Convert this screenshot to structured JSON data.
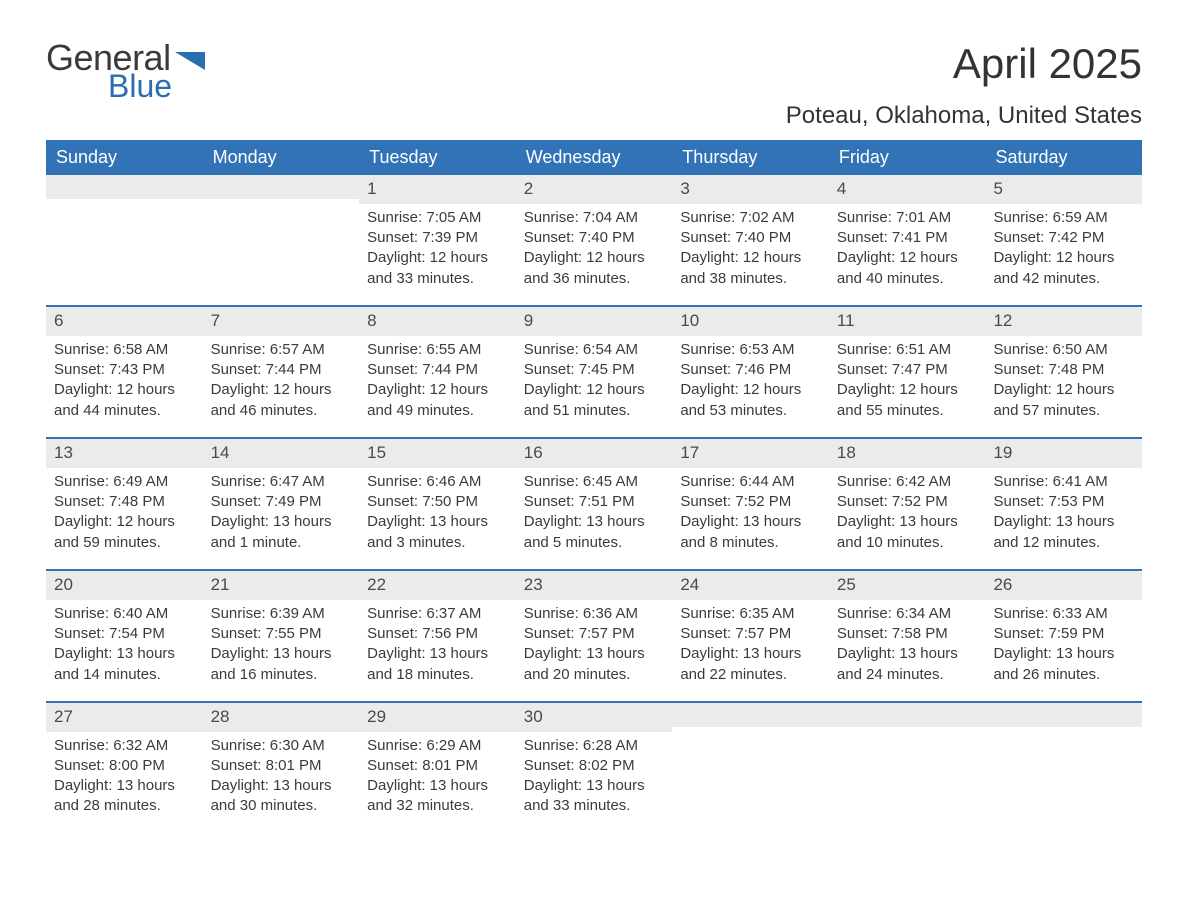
{
  "logo": {
    "word1": "General",
    "word2": "Blue",
    "shape_color": "#2a6db0"
  },
  "title": "April 2025",
  "location": "Poteau, Oklahoma, United States",
  "colors": {
    "header_bg": "#3173b6",
    "header_text": "#ffffff",
    "daynum_bg": "#ebebeb",
    "week_border": "#3173b6",
    "text": "#333333"
  },
  "dow": [
    "Sunday",
    "Monday",
    "Tuesday",
    "Wednesday",
    "Thursday",
    "Friday",
    "Saturday"
  ],
  "weeks": [
    [
      {
        "n": "",
        "sunrise": "",
        "sunset": "",
        "daylight": ""
      },
      {
        "n": "",
        "sunrise": "",
        "sunset": "",
        "daylight": ""
      },
      {
        "n": "1",
        "sunrise": "Sunrise: 7:05 AM",
        "sunset": "Sunset: 7:39 PM",
        "daylight": "Daylight: 12 hours and 33 minutes."
      },
      {
        "n": "2",
        "sunrise": "Sunrise: 7:04 AM",
        "sunset": "Sunset: 7:40 PM",
        "daylight": "Daylight: 12 hours and 36 minutes."
      },
      {
        "n": "3",
        "sunrise": "Sunrise: 7:02 AM",
        "sunset": "Sunset: 7:40 PM",
        "daylight": "Daylight: 12 hours and 38 minutes."
      },
      {
        "n": "4",
        "sunrise": "Sunrise: 7:01 AM",
        "sunset": "Sunset: 7:41 PM",
        "daylight": "Daylight: 12 hours and 40 minutes."
      },
      {
        "n": "5",
        "sunrise": "Sunrise: 6:59 AM",
        "sunset": "Sunset: 7:42 PM",
        "daylight": "Daylight: 12 hours and 42 minutes."
      }
    ],
    [
      {
        "n": "6",
        "sunrise": "Sunrise: 6:58 AM",
        "sunset": "Sunset: 7:43 PM",
        "daylight": "Daylight: 12 hours and 44 minutes."
      },
      {
        "n": "7",
        "sunrise": "Sunrise: 6:57 AM",
        "sunset": "Sunset: 7:44 PM",
        "daylight": "Daylight: 12 hours and 46 minutes."
      },
      {
        "n": "8",
        "sunrise": "Sunrise: 6:55 AM",
        "sunset": "Sunset: 7:44 PM",
        "daylight": "Daylight: 12 hours and 49 minutes."
      },
      {
        "n": "9",
        "sunrise": "Sunrise: 6:54 AM",
        "sunset": "Sunset: 7:45 PM",
        "daylight": "Daylight: 12 hours and 51 minutes."
      },
      {
        "n": "10",
        "sunrise": "Sunrise: 6:53 AM",
        "sunset": "Sunset: 7:46 PM",
        "daylight": "Daylight: 12 hours and 53 minutes."
      },
      {
        "n": "11",
        "sunrise": "Sunrise: 6:51 AM",
        "sunset": "Sunset: 7:47 PM",
        "daylight": "Daylight: 12 hours and 55 minutes."
      },
      {
        "n": "12",
        "sunrise": "Sunrise: 6:50 AM",
        "sunset": "Sunset: 7:48 PM",
        "daylight": "Daylight: 12 hours and 57 minutes."
      }
    ],
    [
      {
        "n": "13",
        "sunrise": "Sunrise: 6:49 AM",
        "sunset": "Sunset: 7:48 PM",
        "daylight": "Daylight: 12 hours and 59 minutes."
      },
      {
        "n": "14",
        "sunrise": "Sunrise: 6:47 AM",
        "sunset": "Sunset: 7:49 PM",
        "daylight": "Daylight: 13 hours and 1 minute."
      },
      {
        "n": "15",
        "sunrise": "Sunrise: 6:46 AM",
        "sunset": "Sunset: 7:50 PM",
        "daylight": "Daylight: 13 hours and 3 minutes."
      },
      {
        "n": "16",
        "sunrise": "Sunrise: 6:45 AM",
        "sunset": "Sunset: 7:51 PM",
        "daylight": "Daylight: 13 hours and 5 minutes."
      },
      {
        "n": "17",
        "sunrise": "Sunrise: 6:44 AM",
        "sunset": "Sunset: 7:52 PM",
        "daylight": "Daylight: 13 hours and 8 minutes."
      },
      {
        "n": "18",
        "sunrise": "Sunrise: 6:42 AM",
        "sunset": "Sunset: 7:52 PM",
        "daylight": "Daylight: 13 hours and 10 minutes."
      },
      {
        "n": "19",
        "sunrise": "Sunrise: 6:41 AM",
        "sunset": "Sunset: 7:53 PM",
        "daylight": "Daylight: 13 hours and 12 minutes."
      }
    ],
    [
      {
        "n": "20",
        "sunrise": "Sunrise: 6:40 AM",
        "sunset": "Sunset: 7:54 PM",
        "daylight": "Daylight: 13 hours and 14 minutes."
      },
      {
        "n": "21",
        "sunrise": "Sunrise: 6:39 AM",
        "sunset": "Sunset: 7:55 PM",
        "daylight": "Daylight: 13 hours and 16 minutes."
      },
      {
        "n": "22",
        "sunrise": "Sunrise: 6:37 AM",
        "sunset": "Sunset: 7:56 PM",
        "daylight": "Daylight: 13 hours and 18 minutes."
      },
      {
        "n": "23",
        "sunrise": "Sunrise: 6:36 AM",
        "sunset": "Sunset: 7:57 PM",
        "daylight": "Daylight: 13 hours and 20 minutes."
      },
      {
        "n": "24",
        "sunrise": "Sunrise: 6:35 AM",
        "sunset": "Sunset: 7:57 PM",
        "daylight": "Daylight: 13 hours and 22 minutes."
      },
      {
        "n": "25",
        "sunrise": "Sunrise: 6:34 AM",
        "sunset": "Sunset: 7:58 PM",
        "daylight": "Daylight: 13 hours and 24 minutes."
      },
      {
        "n": "26",
        "sunrise": "Sunrise: 6:33 AM",
        "sunset": "Sunset: 7:59 PM",
        "daylight": "Daylight: 13 hours and 26 minutes."
      }
    ],
    [
      {
        "n": "27",
        "sunrise": "Sunrise: 6:32 AM",
        "sunset": "Sunset: 8:00 PM",
        "daylight": "Daylight: 13 hours and 28 minutes."
      },
      {
        "n": "28",
        "sunrise": "Sunrise: 6:30 AM",
        "sunset": "Sunset: 8:01 PM",
        "daylight": "Daylight: 13 hours and 30 minutes."
      },
      {
        "n": "29",
        "sunrise": "Sunrise: 6:29 AM",
        "sunset": "Sunset: 8:01 PM",
        "daylight": "Daylight: 13 hours and 32 minutes."
      },
      {
        "n": "30",
        "sunrise": "Sunrise: 6:28 AM",
        "sunset": "Sunset: 8:02 PM",
        "daylight": "Daylight: 13 hours and 33 minutes."
      },
      {
        "n": "",
        "sunrise": "",
        "sunset": "",
        "daylight": ""
      },
      {
        "n": "",
        "sunrise": "",
        "sunset": "",
        "daylight": ""
      },
      {
        "n": "",
        "sunrise": "",
        "sunset": "",
        "daylight": ""
      }
    ]
  ]
}
